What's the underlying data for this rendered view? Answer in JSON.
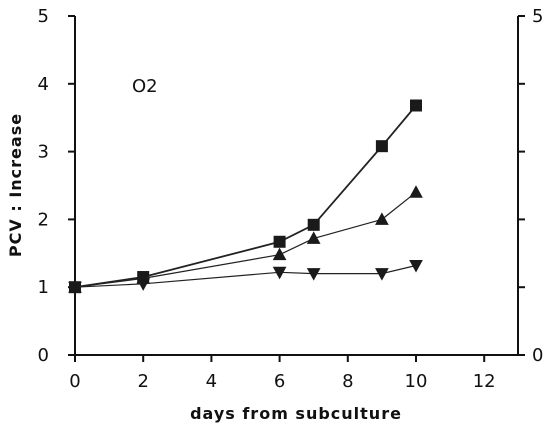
{
  "chart_data": {
    "type": "line",
    "xlabel": "days from subculture",
    "ylabel": "PCV : Increase",
    "annotation": "O2",
    "xlim": [
      0,
      13
    ],
    "ylim": [
      0,
      5
    ],
    "x_ticks": [
      0,
      2,
      4,
      6,
      8,
      10,
      12
    ],
    "y_ticks": [
      0,
      1,
      2,
      3,
      4,
      5
    ],
    "right_axis_ticks": [
      0,
      5
    ],
    "grid": false,
    "series": [
      {
        "marker": "square",
        "x": [
          0,
          2,
          6,
          7,
          9,
          10
        ],
        "y": [
          1.0,
          1.15,
          1.67,
          1.92,
          3.08,
          3.68
        ]
      },
      {
        "marker": "triangle-up",
        "x": [
          0,
          2,
          6,
          7,
          9,
          10
        ],
        "y": [
          1.0,
          1.13,
          1.48,
          1.72,
          2.0,
          2.4
        ]
      },
      {
        "marker": "triangle-down",
        "x": [
          0,
          2,
          6,
          7,
          9,
          10
        ],
        "y": [
          1.0,
          1.05,
          1.22,
          1.2,
          1.2,
          1.32
        ]
      }
    ]
  }
}
